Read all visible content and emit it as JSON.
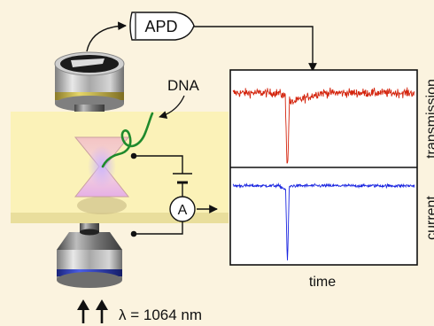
{
  "labels": {
    "detector": "APD",
    "molecule": "DNA",
    "ammeter": "A",
    "wavelength": "λ = 1064 nm",
    "x_axis": "time",
    "trace_top": "transmission",
    "trace_bottom": "current"
  },
  "colors": {
    "background": "#fbf3df",
    "membrane": "#fbf2b8",
    "dna": "#1f8a2c",
    "trace_transmission": "#d4250e",
    "trace_current": "#1a25e0",
    "objective_band_top": "#c9b54a",
    "objective_band_bottom": "#2b3fc4"
  },
  "icons": {
    "laser_arrows": "double-up-arrow-icon",
    "ammeter": "circled-a-icon",
    "detector": "apd-detector-icon"
  },
  "chart_data": [
    {
      "type": "line",
      "name": "transmission",
      "xlabel": "time",
      "ylabel": "transmission",
      "baseline": 0.78,
      "noise": 0.08,
      "events": [
        {
          "t": 0.3,
          "depth": 0.95,
          "width": 0.012,
          "recovery": 0.18
        }
      ]
    },
    {
      "type": "line",
      "name": "current",
      "xlabel": "time",
      "ylabel": "current",
      "baseline": 0.83,
      "noise": 0.03,
      "events": [
        {
          "t": 0.3,
          "depth": 0.9,
          "width": 0.01,
          "recovery": 0.02
        }
      ]
    }
  ]
}
